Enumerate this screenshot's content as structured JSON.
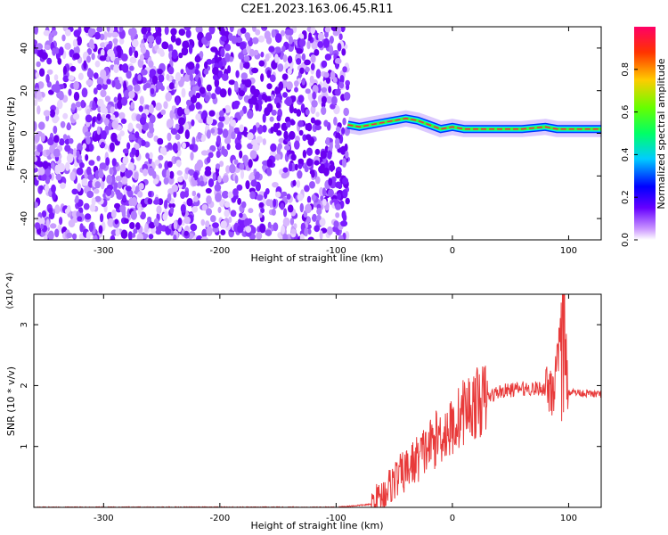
{
  "title": "C2E1.2023.163.06.45.R11",
  "chart_data": [
    {
      "type": "heatmap",
      "xlabel": "Height of straight line (km)",
      "ylabel": "Frequency (Hz)",
      "xlim": [
        -360,
        128
      ],
      "ylim": [
        -50,
        50
      ],
      "x_ticks": [
        -300,
        -200,
        -100,
        0,
        100
      ],
      "y_ticks": [
        -40,
        -20,
        0,
        20,
        40
      ],
      "colorbar": {
        "label": "Normalized spectral amplitude",
        "range": [
          0,
          1
        ],
        "ticks": [
          0.0,
          0.2,
          0.4,
          0.6,
          0.8
        ],
        "colormap": [
          "#ffffff",
          "#cc99ff",
          "#6600ff",
          "#0000ff",
          "#00ccff",
          "#00ff66",
          "#66ff00",
          "#ffcc00",
          "#ff3300",
          "#ff0066"
        ]
      },
      "ridge": {
        "x": [
          -90,
          -80,
          -70,
          -60,
          -50,
          -40,
          -30,
          -20,
          -10,
          0,
          10,
          20,
          40,
          60,
          80,
          90,
          100,
          128
        ],
        "y": [
          4,
          3,
          4,
          5,
          6,
          7,
          6,
          4,
          2,
          3,
          2,
          2,
          2,
          2,
          3,
          2,
          2,
          2
        ]
      },
      "noise_region": "x < -90"
    },
    {
      "type": "line",
      "xlabel": "Height of straight line (km)",
      "ylabel": "SNR (10 * v/v)",
      "y_multiplier": "(x10^4)",
      "xlim": [
        -360,
        128
      ],
      "ylim": [
        0,
        3.5
      ],
      "x_ticks": [
        -300,
        -200,
        -100,
        0,
        100
      ],
      "y_ticks": [
        1,
        2,
        3
      ],
      "series": [
        {
          "color": "#e83a3a",
          "x": [
            -360,
            -100,
            -70,
            -60,
            -50,
            -40,
            -30,
            -20,
            -10,
            0,
            10,
            20,
            40,
            60,
            80,
            90,
            95,
            100,
            128
          ],
          "y": [
            0.0,
            0.0,
            0.05,
            0.2,
            0.45,
            0.6,
            0.8,
            1.0,
            1.2,
            1.3,
            1.6,
            1.7,
            1.9,
            1.95,
            1.95,
            2.1,
            3.0,
            1.9,
            1.85
          ]
        }
      ]
    }
  ]
}
